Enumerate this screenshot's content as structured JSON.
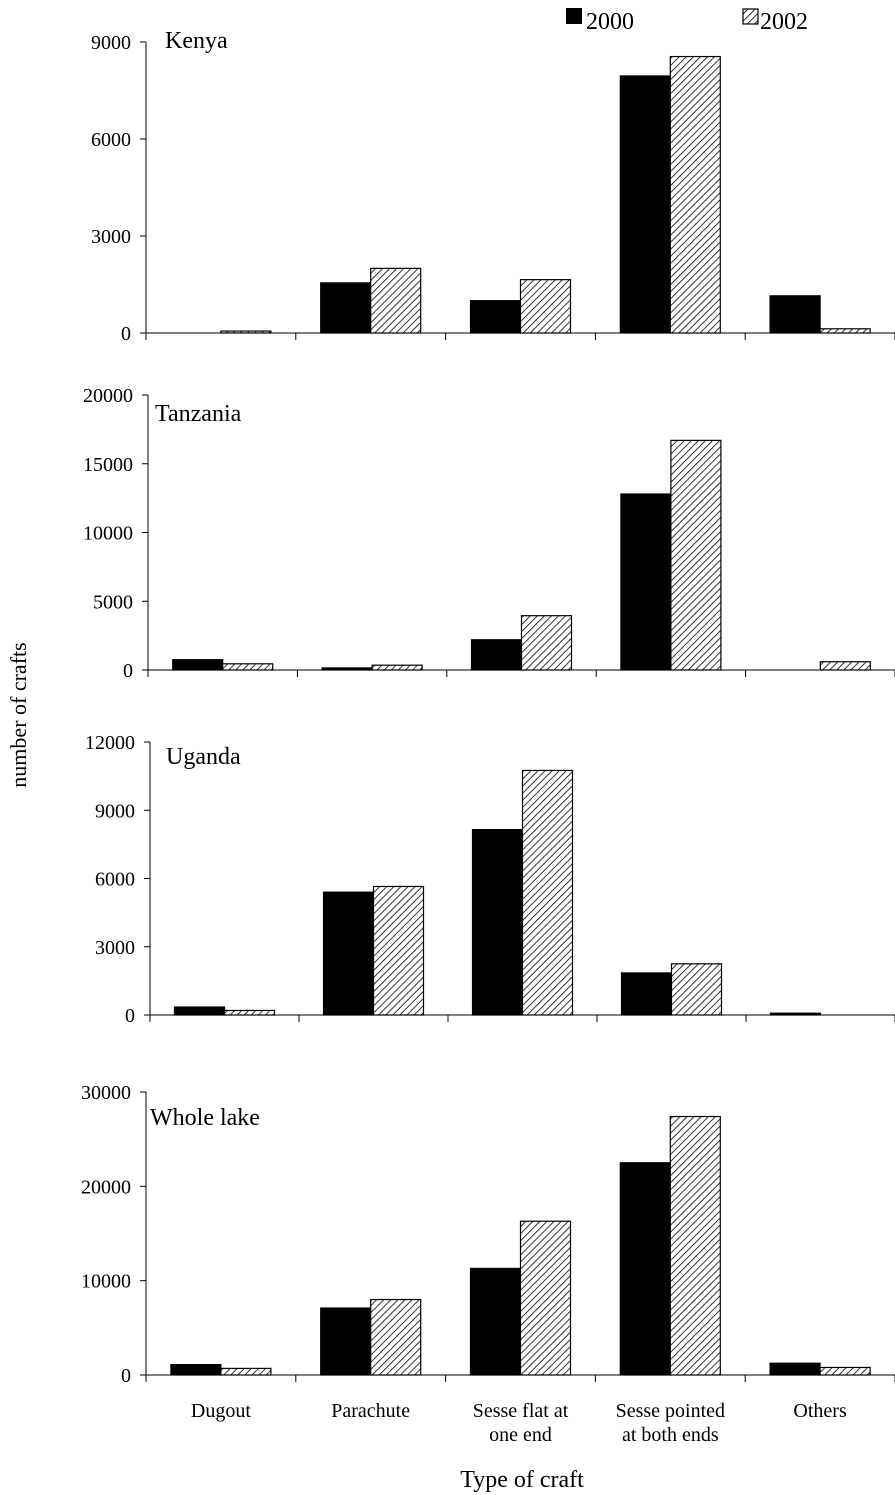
{
  "legend": {
    "items": [
      {
        "label": "2000",
        "color": "#000000",
        "pattern": "solid"
      },
      {
        "label": "2002",
        "color": "#ffffff",
        "pattern": "hatch"
      }
    ]
  },
  "ylabel": "number of crafts",
  "xlabel": "Type of craft",
  "chart_data": [
    {
      "type": "bar",
      "title": "Kenya",
      "categories": [
        "Dugout",
        "Parachute",
        "Sesse flat at one end",
        "Sesse pointed at both ends",
        "Others"
      ],
      "ylim": [
        0,
        9000
      ],
      "yticks": [
        0,
        3000,
        6000,
        9000
      ],
      "series": [
        {
          "name": "2000",
          "values": [
            0,
            1550,
            1000,
            7950,
            1150
          ]
        },
        {
          "name": "2002",
          "values": [
            60,
            2000,
            1650,
            8550,
            130
          ]
        }
      ]
    },
    {
      "type": "bar",
      "title": "Tanzania",
      "categories": [
        "Dugout",
        "Parachute",
        "Sesse flat at one end",
        "Sesse pointed at both ends",
        "Others"
      ],
      "ylim": [
        0,
        20000
      ],
      "yticks": [
        0,
        5000,
        10000,
        15000,
        20000
      ],
      "series": [
        {
          "name": "2000",
          "values": [
            750,
            150,
            2200,
            12800,
            0
          ]
        },
        {
          "name": "2002",
          "values": [
            450,
            350,
            3950,
            16700,
            600
          ]
        }
      ]
    },
    {
      "type": "bar",
      "title": "Uganda",
      "categories": [
        "Dugout",
        "Parachute",
        "Sesse flat at one end",
        "Sesse pointed at both ends",
        "Others"
      ],
      "ylim": [
        0,
        12000
      ],
      "yticks": [
        0,
        3000,
        6000,
        9000,
        12000
      ],
      "series": [
        {
          "name": "2000",
          "values": [
            350,
            5400,
            8150,
            1850,
            80
          ]
        },
        {
          "name": "2002",
          "values": [
            200,
            5650,
            10750,
            2250,
            0
          ]
        }
      ]
    },
    {
      "type": "bar",
      "title": "Whole lake",
      "categories": [
        "Dugout",
        "Parachute",
        "Sesse flat at one end",
        "Sesse pointed at both ends",
        "Others"
      ],
      "ylim": [
        0,
        30000
      ],
      "yticks": [
        0,
        10000,
        20000,
        30000
      ],
      "series": [
        {
          "name": "2000",
          "values": [
            1100,
            7100,
            11300,
            22500,
            1250
          ]
        },
        {
          "name": "2002",
          "values": [
            700,
            8000,
            16300,
            27400,
            800
          ]
        }
      ]
    }
  ],
  "category_labels": [
    [
      "Dugout"
    ],
    [
      "Parachute"
    ],
    [
      "Sesse flat at",
      "one end"
    ],
    [
      "Sesse pointed",
      "at both ends"
    ],
    [
      "Others"
    ]
  ]
}
